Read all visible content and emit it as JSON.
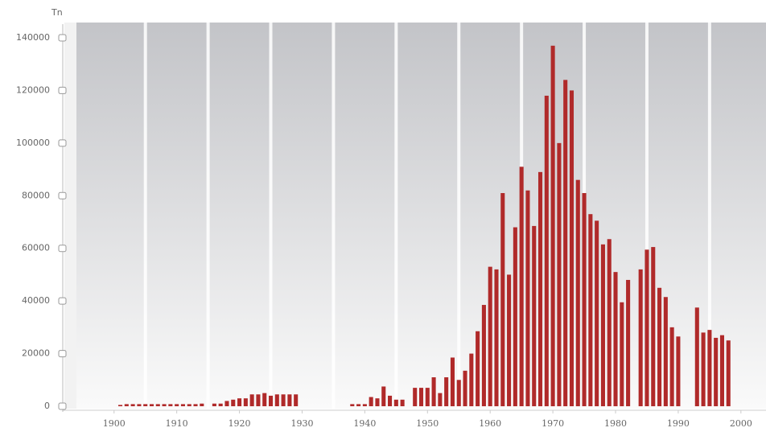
{
  "chart_data": {
    "type": "bar",
    "unit_label": "Tn",
    "x": [
      1901,
      1902,
      1903,
      1904,
      1905,
      1906,
      1907,
      1908,
      1909,
      1910,
      1911,
      1912,
      1913,
      1914,
      1915,
      1916,
      1917,
      1918,
      1919,
      1920,
      1921,
      1922,
      1923,
      1924,
      1925,
      1926,
      1927,
      1928,
      1929,
      1930,
      1931,
      1932,
      1933,
      1934,
      1935,
      1936,
      1937,
      1938,
      1939,
      1940,
      1941,
      1942,
      1943,
      1944,
      1945,
      1946,
      1947,
      1948,
      1949,
      1950,
      1951,
      1952,
      1953,
      1954,
      1955,
      1956,
      1957,
      1958,
      1959,
      1960,
      1961,
      1962,
      1963,
      1964,
      1965,
      1966,
      1967,
      1968,
      1969,
      1970,
      1971,
      1972,
      1973,
      1974,
      1975,
      1976,
      1977,
      1978,
      1979,
      1980,
      1981,
      1982,
      1983,
      1984,
      1985,
      1986,
      1987,
      1988,
      1989,
      1990,
      1991,
      1992,
      1993,
      1994,
      1995,
      1996,
      1997,
      1998
    ],
    "values": [
      500,
      800,
      800,
      800,
      800,
      800,
      800,
      800,
      800,
      800,
      800,
      800,
      800,
      1000,
      null,
      1000,
      1000,
      2000,
      2500,
      3000,
      3000,
      4500,
      4500,
      5000,
      4000,
      4500,
      4500,
      4500,
      4500,
      null,
      null,
      null,
      null,
      null,
      null,
      null,
      null,
      800,
      800,
      800,
      3500,
      3000,
      7500,
      4000,
      2500,
      2500,
      null,
      7000,
      7000,
      7000,
      11000,
      5000,
      11000,
      18500,
      10000,
      13500,
      20000,
      28500,
      38500,
      53000,
      52000,
      81000,
      50000,
      68000,
      91000,
      82000,
      68500,
      89000,
      118000,
      137000,
      100000,
      124000,
      120000,
      86000,
      81000,
      73000,
      70500,
      61500,
      63500,
      51000,
      39500,
      48000,
      null,
      52000,
      59500,
      60500,
      45000,
      41500,
      30000,
      26500,
      null,
      null,
      37500,
      28000,
      29000,
      26000,
      27000,
      25000
    ],
    "color": "#b02a2a",
    "xlim": [
      1894,
      2004
    ],
    "xticks": [
      1900,
      1910,
      1920,
      1930,
      1940,
      1950,
      1960,
      1970,
      1980,
      1990,
      2000
    ],
    "ylim": [
      0,
      140000
    ],
    "yticks": [
      0,
      20000,
      40000,
      60000,
      80000,
      100000,
      120000,
      140000
    ]
  }
}
